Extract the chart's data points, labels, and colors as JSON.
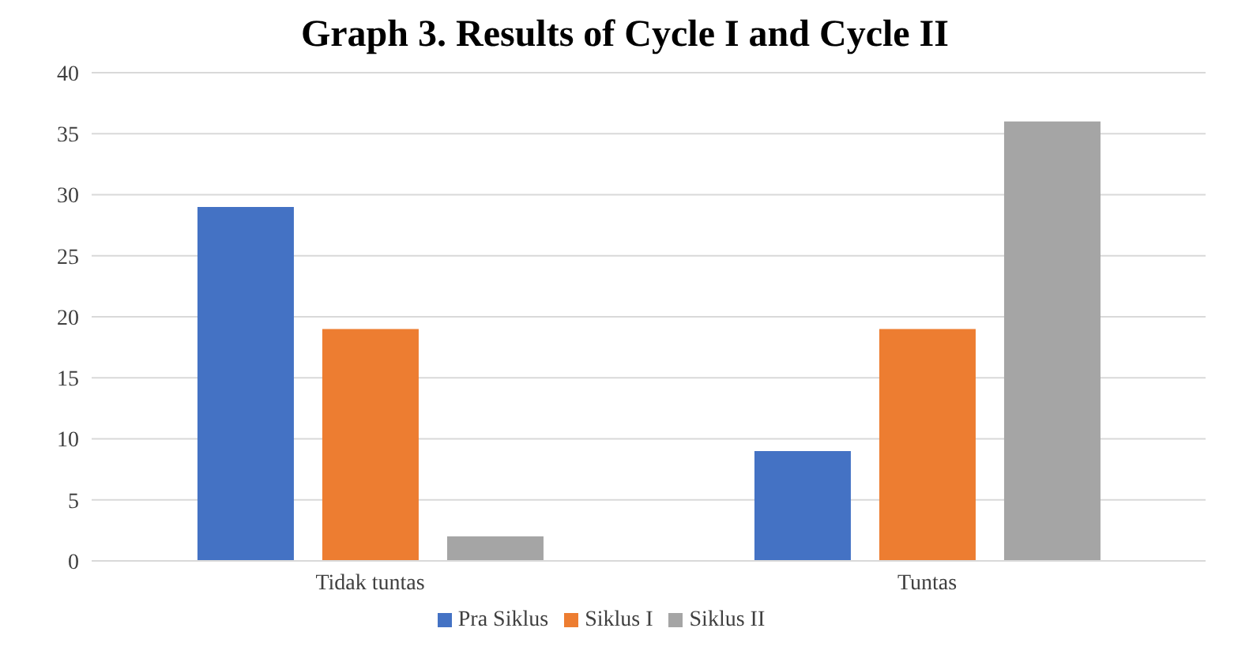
{
  "chart_data": {
    "type": "bar",
    "title": "Graph 3. Results of Cycle I and Cycle II",
    "categories": [
      "Tidak tuntas",
      "Tuntas"
    ],
    "series": [
      {
        "name": "Pra Siklus",
        "color": "#4472c4",
        "values": [
          29,
          9
        ]
      },
      {
        "name": "Siklus I",
        "color": "#ed7d31",
        "values": [
          19,
          19
        ]
      },
      {
        "name": "Siklus II",
        "color": "#a5a5a5",
        "values": [
          2,
          36
        ]
      }
    ],
    "ylim": [
      0,
      40
    ],
    "yticks": [
      0,
      5,
      10,
      15,
      20,
      25,
      30,
      35,
      40
    ],
    "grid": "y",
    "legend": "bottom"
  }
}
